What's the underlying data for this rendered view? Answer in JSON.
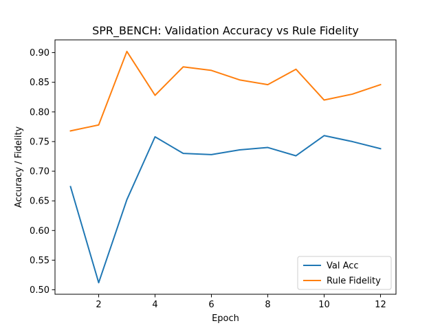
{
  "chart_data": {
    "type": "line",
    "title": "SPR_BENCH: Validation Accuracy vs Rule Fidelity",
    "xlabel": "Epoch",
    "ylabel": "Accuracy / Fidelity",
    "xlim": [
      0.45,
      12.55
    ],
    "ylim": [
      0.4925,
      0.9215
    ],
    "x_ticks": [
      2,
      4,
      6,
      8,
      10,
      12
    ],
    "y_ticks": [
      0.5,
      0.55,
      0.6,
      0.65,
      0.7,
      0.75,
      0.8,
      0.85,
      0.9
    ],
    "grid": false,
    "legend_position": "lower-right",
    "x": [
      1,
      2,
      3,
      4,
      5,
      6,
      7,
      8,
      9,
      10,
      11,
      12
    ],
    "series": [
      {
        "name": "Val Acc",
        "color": "#1f77b4",
        "values": [
          0.674,
          0.512,
          0.652,
          0.758,
          0.73,
          0.728,
          0.736,
          0.74,
          0.726,
          0.76,
          0.75,
          0.738
        ]
      },
      {
        "name": "Rule Fidelity",
        "color": "#ff7f0e",
        "values": [
          0.768,
          0.778,
          0.902,
          0.828,
          0.876,
          0.87,
          0.854,
          0.846,
          0.872,
          0.82,
          0.83,
          0.846
        ]
      }
    ]
  }
}
